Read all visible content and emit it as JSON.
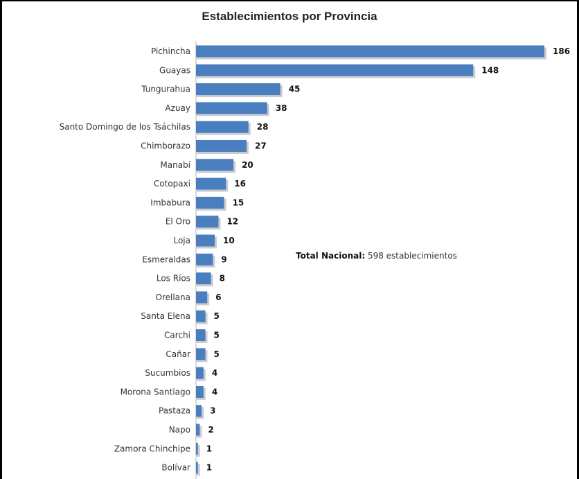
{
  "chart_data": {
    "type": "bar",
    "orientation": "horizontal",
    "title": "Establecimientos por Provincia",
    "xlabel": "",
    "ylabel": "",
    "xlim": [
      0,
      186
    ],
    "grid": false,
    "bar_color": "#4a7ebf",
    "categories": [
      "Pichincha",
      "Guayas",
      "Tungurahua",
      "Azuay",
      "Santo Domingo de los Tsáchilas",
      "Chimborazo",
      "Manabí",
      "Cotopaxi",
      "Imbabura",
      "El Oro",
      "Loja",
      "Esmeraldas",
      "Los Ríos",
      "Orellana",
      "Santa Elena",
      "Carchi",
      "Cañar",
      "Sucumbios",
      "Morona Santiago",
      "Pastaza",
      "Napo",
      "Zamora Chinchipe",
      "Bolívar"
    ],
    "values": [
      186,
      148,
      45,
      38,
      28,
      27,
      20,
      16,
      15,
      12,
      10,
      9,
      8,
      6,
      5,
      5,
      5,
      4,
      4,
      3,
      2,
      1,
      1
    ]
  },
  "annotation": {
    "bold_part": "Total  Nacional:",
    "rest": " 598 establecimientos"
  }
}
